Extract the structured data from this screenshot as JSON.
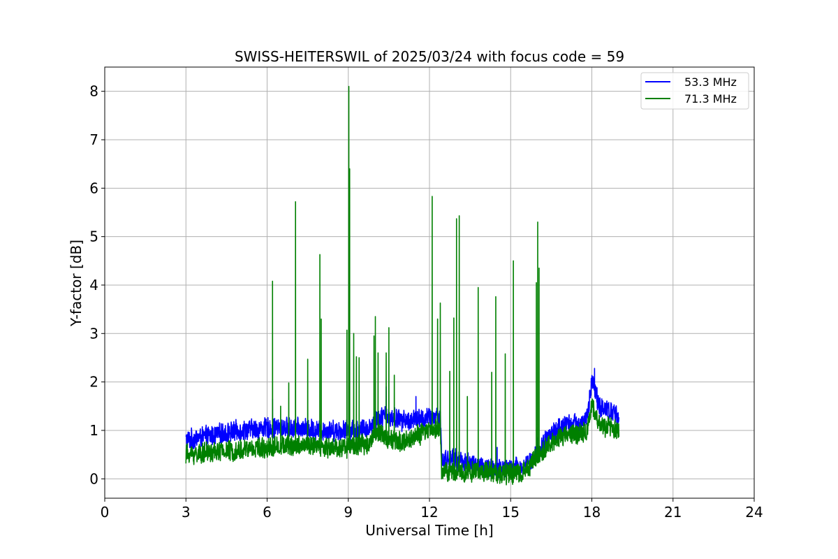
{
  "chart_data": {
    "type": "line",
    "title": "SWISS-HEITERSWIL of 2025/03/24 with focus code = 59",
    "xlabel": "Universal Time [h]",
    "ylabel": "Y-factor [dB]",
    "xlim": [
      0,
      24
    ],
    "ylim": [
      -0.4,
      8.5
    ],
    "xticks": [
      0,
      3,
      6,
      9,
      12,
      15,
      18,
      21,
      24
    ],
    "yticks": [
      0,
      1,
      2,
      3,
      4,
      5,
      6,
      7,
      8
    ],
    "grid": true,
    "legend_position": "top-right",
    "x_range_of_data": [
      3,
      19
    ],
    "series": [
      {
        "name": "53.3 MHz",
        "color": "#0000ff",
        "baseline": [
          [
            3,
            0.8
          ],
          [
            4,
            0.9
          ],
          [
            5,
            1.0
          ],
          [
            6,
            1.05
          ],
          [
            7,
            1.05
          ],
          [
            8,
            1.0
          ],
          [
            9,
            1.0
          ],
          [
            9.8,
            1.05
          ],
          [
            10,
            1.25
          ],
          [
            10.5,
            1.3
          ],
          [
            11,
            1.2
          ],
          [
            12,
            1.25
          ],
          [
            12.4,
            1.3
          ],
          [
            12.45,
            0.4
          ],
          [
            13,
            0.4
          ],
          [
            14,
            0.25
          ],
          [
            14.5,
            0.2
          ],
          [
            15,
            0.2
          ],
          [
            15.5,
            0.25
          ],
          [
            16,
            0.55
          ],
          [
            16.5,
            0.95
          ],
          [
            17,
            1.1
          ],
          [
            17.5,
            1.15
          ],
          [
            17.8,
            1.2
          ],
          [
            18,
            2.0
          ],
          [
            18.3,
            1.5
          ],
          [
            19,
            1.3
          ]
        ],
        "noise_amplitude": 0.3,
        "spikes": [
          [
            6.2,
            1.65
          ],
          [
            10.4,
            1.9
          ],
          [
            11.5,
            1.7
          ],
          [
            14.5,
            0.65
          ],
          [
            15.2,
            0.45
          ],
          [
            16.0,
            0.85
          ],
          [
            18.1,
            2.28
          ]
        ]
      },
      {
        "name": "71.3 MHz",
        "color": "#008000",
        "baseline": [
          [
            3,
            0.5
          ],
          [
            4,
            0.55
          ],
          [
            5,
            0.6
          ],
          [
            6,
            0.65
          ],
          [
            7,
            0.7
          ],
          [
            8,
            0.65
          ],
          [
            9,
            0.65
          ],
          [
            9.8,
            0.75
          ],
          [
            10,
            1.0
          ],
          [
            10.5,
            0.8
          ],
          [
            11,
            0.75
          ],
          [
            12,
            1.0
          ],
          [
            12.4,
            1.05
          ],
          [
            12.45,
            0.15
          ],
          [
            13,
            0.15
          ],
          [
            14,
            0.15
          ],
          [
            15,
            0.1
          ],
          [
            15.5,
            0.15
          ],
          [
            16,
            0.45
          ],
          [
            16.5,
            0.75
          ],
          [
            17,
            0.9
          ],
          [
            17.5,
            0.95
          ],
          [
            17.8,
            0.95
          ],
          [
            18,
            1.5
          ],
          [
            18.3,
            1.1
          ],
          [
            19,
            1.0
          ]
        ],
        "noise_amplitude": 0.3,
        "spikes": [
          [
            6.2,
            4.08
          ],
          [
            6.5,
            1.5
          ],
          [
            6.8,
            1.98
          ],
          [
            7.05,
            5.72
          ],
          [
            7.5,
            2.47
          ],
          [
            7.95,
            4.63
          ],
          [
            8.0,
            3.3
          ],
          [
            8.95,
            3.07
          ],
          [
            9.02,
            8.1
          ],
          [
            9.05,
            6.4
          ],
          [
            9.2,
            3.0
          ],
          [
            9.3,
            2.52
          ],
          [
            9.4,
            2.5
          ],
          [
            9.95,
            2.95
          ],
          [
            10.0,
            3.35
          ],
          [
            10.1,
            2.6
          ],
          [
            10.4,
            2.6
          ],
          [
            10.5,
            3.12
          ],
          [
            10.7,
            2.14
          ],
          [
            12.1,
            5.83
          ],
          [
            12.3,
            3.3
          ],
          [
            12.4,
            3.63
          ],
          [
            12.75,
            2.22
          ],
          [
            12.9,
            3.32
          ],
          [
            13.0,
            5.37
          ],
          [
            13.1,
            5.43
          ],
          [
            13.4,
            1.7
          ],
          [
            13.8,
            3.95
          ],
          [
            14.3,
            2.2
          ],
          [
            14.45,
            3.76
          ],
          [
            14.8,
            2.58
          ],
          [
            15.1,
            4.5
          ],
          [
            15.95,
            4.05
          ],
          [
            16.0,
            5.3
          ],
          [
            16.05,
            4.35
          ]
        ]
      }
    ]
  }
}
